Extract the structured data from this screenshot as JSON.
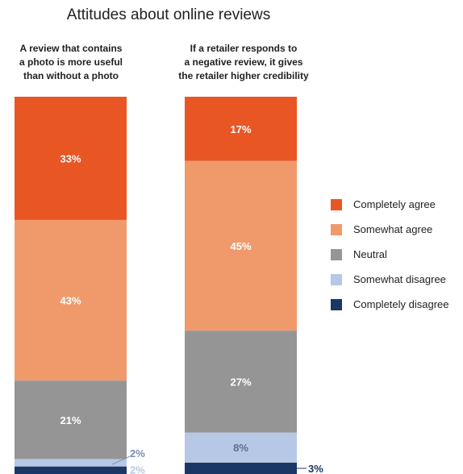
{
  "chart_data": {
    "type": "bar",
    "stacked": true,
    "normalized": true,
    "title": "Attitudes about online reviews",
    "bars": [
      {
        "label_lines": [
          "A review that contains",
          "a photo is more useful",
          "than without a photo"
        ],
        "values": [
          33,
          43,
          21,
          2,
          2
        ],
        "value_labels": [
          "33%",
          "43%",
          "21%",
          "2%",
          "2%"
        ]
      },
      {
        "label_lines": [
          "If a retailer responds to",
          "a negative review, it gives",
          "the retailer higher credibility"
        ],
        "values": [
          17,
          45,
          27,
          8,
          3
        ],
        "value_labels": [
          "17%",
          "45%",
          "27%",
          "8%",
          "3%"
        ]
      }
    ],
    "series": [
      {
        "name": "Completely agree",
        "color": "#e85624"
      },
      {
        "name": "Somewhat agree",
        "color": "#f09a6c"
      },
      {
        "name": "Neutral",
        "color": "#959596"
      },
      {
        "name": "Somewhat disagree",
        "color": "#b7c7e6"
      },
      {
        "name": "Completely disagree",
        "color": "#1b3766"
      }
    ],
    "legend_position": "right",
    "grid": false
  }
}
